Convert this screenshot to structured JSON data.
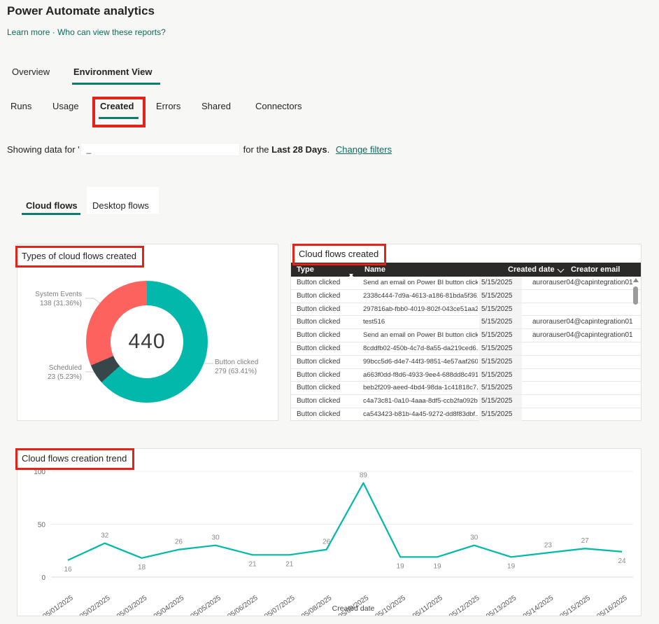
{
  "header": {
    "title": "Power Automate analytics",
    "learn_more": "Learn more",
    "dot": "·",
    "who_can_view": "Who can view these reports?"
  },
  "main_tabs": {
    "overview": "Overview",
    "environment_view": "Environment View"
  },
  "sub_tabs": {
    "runs": "Runs",
    "usage": "Usage",
    "created": "Created",
    "errors": "Errors",
    "shared": "Shared",
    "connectors": "Connectors"
  },
  "filter_bar": {
    "prefix": "Showing data for '",
    "redacted_remnant": "_",
    "middle": "for the ",
    "range": "Last 28 Days",
    "period": ". ",
    "change_filters": "Change filters"
  },
  "flow_tabs": {
    "cloud": "Cloud flows",
    "desktop": "Desktop flows"
  },
  "donut_card": {
    "title": "Types of cloud flows created"
  },
  "table_card": {
    "title": "Cloud flows created",
    "columns": {
      "type": "Type",
      "name": "Name",
      "created_date": "Created date",
      "creator_email": "Creator email"
    },
    "rows": [
      {
        "type": "Button clicked",
        "name": "Send an email on Power BI button click ...",
        "date": "5/15/2025",
        "email": "aurorauser04@capintegration01"
      },
      {
        "type": "Button clicked",
        "name": "2338c444-7d9a-4613-a186-81bda5f36...",
        "date": "5/15/2025",
        "email": ""
      },
      {
        "type": "Button clicked",
        "name": "297816ab-fbb0-4019-802f-043ce51aa2fe",
        "date": "5/15/2025",
        "email": ""
      },
      {
        "type": "Button clicked",
        "name": "test516",
        "date": "5/15/2025",
        "email": "aurorauser04@capintegration01"
      },
      {
        "type": "Button clicked",
        "name": "Send an email on Power BI button click ...",
        "date": "5/15/2025",
        "email": "aurorauser04@capintegration01"
      },
      {
        "type": "Button clicked",
        "name": "8cddfb02-450b-4c7d-8a55-da219ced6...",
        "date": "5/15/2025",
        "email": ""
      },
      {
        "type": "Button clicked",
        "name": "99bcc5d6-d4e7-44f3-9851-4e57aaf260...",
        "date": "5/15/2025",
        "email": ""
      },
      {
        "type": "Button clicked",
        "name": "a663f0dd-f8d6-4933-9ee4-688dd8c491...",
        "date": "5/15/2025",
        "email": ""
      },
      {
        "type": "Button clicked",
        "name": "beb2f209-aeed-4bd4-98da-1c41818c7...",
        "date": "5/15/2025",
        "email": ""
      },
      {
        "type": "Button clicked",
        "name": "c4a73c81-0a10-4aaa-8df5-ccb2fa092b87",
        "date": "5/15/2025",
        "email": ""
      },
      {
        "type": "Button clicked",
        "name": "ca543423-b81b-4a45-9272-dd8f83dbf...",
        "date": "5/15/2025",
        "email": ""
      }
    ]
  },
  "trend_card": {
    "title": "Cloud flows creation trend"
  },
  "chart_data": [
    {
      "type": "pie",
      "donut": true,
      "title": "Types of cloud flows created",
      "center_total": "440",
      "slices": [
        {
          "label": "Button clicked",
          "value": 279,
          "pct": 63.41,
          "value_label": "279 (63.41%)",
          "color": "#01B8AA"
        },
        {
          "label": "Scheduled",
          "value": 23,
          "pct": 5.23,
          "value_label": "23 (5.23%)",
          "color": "#374649"
        },
        {
          "label": "System Events",
          "value": 138,
          "pct": 31.36,
          "value_label": "138 (31.36%)",
          "color": "#FD625E"
        }
      ],
      "legend_position": "none"
    },
    {
      "type": "line",
      "title": "Cloud flows creation trend",
      "x": [
        "05/01/2025",
        "05/02/2025",
        "05/03/2025",
        "05/04/2025",
        "05/05/2025",
        "05/06/2025",
        "05/07/2025",
        "05/08/2025",
        "05/09/2025",
        "05/10/2025",
        "05/11/2025",
        "05/12/2025",
        "05/13/2025",
        "05/14/2025",
        "05/15/2025",
        "05/16/2025"
      ],
      "values": [
        16,
        32,
        18,
        26,
        30,
        21,
        21,
        26,
        89,
        19,
        19,
        30,
        19,
        23,
        27,
        24
      ],
      "xlabel": "Created date",
      "ylabel": "",
      "ylim": [
        0,
        100
      ],
      "yticks": [
        0,
        50,
        100
      ],
      "grid": true,
      "line_color": "#01B8AA",
      "legend_position": "none"
    }
  ],
  "colors": {
    "accent_teal": "#01B8AA",
    "slice_dark": "#374649",
    "slice_red": "#FD625E",
    "link_teal": "#0B6A5B",
    "tab_underline": "#0F7B68",
    "annotation_red": "#E2231A",
    "table_header_bg": "#2B2A29"
  }
}
